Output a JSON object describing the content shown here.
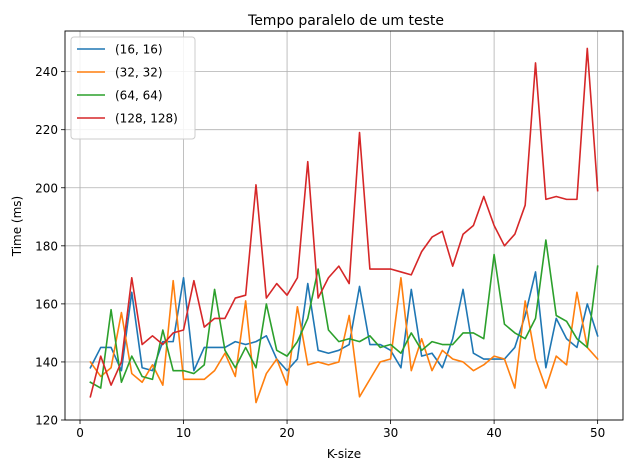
{
  "chart_data": {
    "type": "line",
    "title": "Tempo paralelo de um teste",
    "xlabel": "K-size",
    "ylabel": "Time (ms)",
    "xlim": [
      -1.45,
      52.45
    ],
    "ylim": [
      120,
      254
    ],
    "xticks": [
      0,
      10,
      20,
      30,
      40,
      50
    ],
    "yticks": [
      120,
      140,
      160,
      180,
      200,
      220,
      240
    ],
    "grid": true,
    "legend_position": "top-left",
    "x": [
      1,
      2,
      3,
      4,
      5,
      6,
      7,
      8,
      9,
      10,
      11,
      12,
      13,
      14,
      15,
      16,
      17,
      18,
      19,
      20,
      21,
      22,
      23,
      24,
      25,
      26,
      27,
      28,
      29,
      30,
      31,
      32,
      33,
      34,
      35,
      36,
      37,
      38,
      39,
      40,
      41,
      42,
      43,
      44,
      45,
      46,
      47,
      48,
      49,
      50
    ],
    "series": [
      {
        "name": "(16, 16)",
        "color": "#1f77b4",
        "values": [
          138,
          145,
          145,
          137,
          164,
          138,
          137,
          147,
          147,
          169,
          137,
          145,
          145,
          145,
          147,
          146,
          147,
          149,
          141,
          137,
          141,
          167,
          144,
          143,
          144,
          146,
          166,
          146,
          146,
          144,
          138,
          165,
          142,
          143,
          138,
          148,
          165,
          143,
          141,
          141,
          141,
          145,
          156,
          171,
          138,
          155,
          148,
          145,
          160,
          149
        ]
      },
      {
        "name": "(32, 32)",
        "color": "#ff7f0e",
        "values": [
          140,
          135,
          138,
          157,
          136,
          133,
          139,
          132,
          168,
          134,
          134,
          134,
          137,
          143,
          135,
          161,
          126,
          136,
          141,
          132,
          159,
          139,
          140,
          139,
          140,
          156,
          128,
          134,
          140,
          141,
          169,
          137,
          148,
          137,
          144,
          141,
          140,
          137,
          139,
          142,
          141,
          131,
          161,
          141,
          131,
          142,
          139,
          164,
          145,
          141
        ]
      },
      {
        "name": "(64, 64)",
        "color": "#2ca02c",
        "values": [
          133,
          131,
          158,
          133,
          142,
          135,
          134,
          151,
          137,
          137,
          136,
          139,
          165,
          144,
          138,
          145,
          138,
          160,
          144,
          142,
          147,
          155,
          172,
          151,
          147,
          148,
          147,
          149,
          145,
          146,
          143,
          150,
          144,
          147,
          146,
          146,
          150,
          150,
          148,
          177,
          153,
          150,
          148,
          155,
          182,
          156,
          154,
          148,
          145,
          173
        ]
      },
      {
        "name": "(128, 128)",
        "color": "#d62728",
        "values": [
          128,
          142,
          132,
          140,
          169,
          146,
          149,
          146,
          150,
          151,
          168,
          152,
          155,
          155,
          162,
          163,
          201,
          162,
          167,
          163,
          169,
          209,
          162,
          169,
          173,
          167,
          219,
          172,
          172,
          172,
          171,
          170,
          178,
          183,
          185,
          173,
          184,
          187,
          197,
          187,
          180,
          184,
          194,
          243,
          196,
          197,
          196,
          196,
          248,
          199
        ]
      }
    ]
  }
}
